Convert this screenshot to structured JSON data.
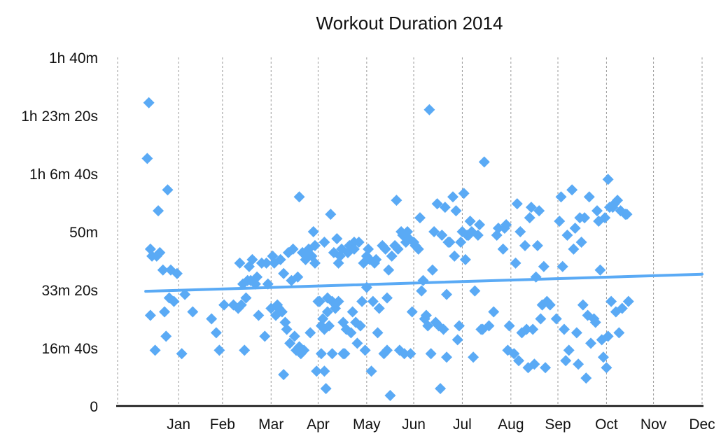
{
  "chart_data": {
    "type": "scatter",
    "title": "Workout Duration 2014",
    "xlabel": "",
    "ylabel": "",
    "x_unit": "day-of-year",
    "y_unit": "minutes",
    "xlim": [
      1,
      365
    ],
    "ylim": [
      0,
      100
    ],
    "grid": {
      "x": true,
      "y": false
    },
    "legend": "none",
    "y_ticks": [
      {
        "value": 0,
        "label": "0"
      },
      {
        "value": 16.667,
        "label": "16m 40s"
      },
      {
        "value": 33.333,
        "label": "33m 20s"
      },
      {
        "value": 50,
        "label": "50m"
      },
      {
        "value": 66.667,
        "label": "1h 6m 40s"
      },
      {
        "value": 83.333,
        "label": "1h 23m 20s"
      },
      {
        "value": 100,
        "label": "1h 40m"
      }
    ],
    "x_ticks": [
      {
        "value": 31,
        "label": "Jan"
      },
      {
        "value": 59,
        "label": "Feb"
      },
      {
        "value": 90,
        "label": "Mar"
      },
      {
        "value": 120,
        "label": "Apr"
      },
      {
        "value": 151,
        "label": "May"
      },
      {
        "value": 181,
        "label": "Jun"
      },
      {
        "value": 212,
        "label": "Jul"
      },
      {
        "value": 243,
        "label": "Aug"
      },
      {
        "value": 273,
        "label": "Sep"
      },
      {
        "value": 304,
        "label": "Oct"
      },
      {
        "value": 334,
        "label": "Nov"
      },
      {
        "value": 365,
        "label": "Dec"
      }
    ],
    "colors": {
      "marker": "#5aaaf5",
      "trend": "#5aaaf5",
      "grid": "#9a9a9a",
      "axis": "#111111"
    },
    "trendline": {
      "x": [
        10,
        365
      ],
      "y": [
        32.9,
        37.8
      ]
    },
    "points": [
      [
        12,
        87
      ],
      [
        11,
        71
      ],
      [
        13,
        26
      ],
      [
        13,
        45
      ],
      [
        14,
        43
      ],
      [
        16,
        16
      ],
      [
        17,
        43
      ],
      [
        18,
        56
      ],
      [
        19,
        44
      ],
      [
        21,
        39
      ],
      [
        22,
        27
      ],
      [
        23,
        20
      ],
      [
        24,
        62
      ],
      [
        25,
        31
      ],
      [
        26,
        39
      ],
      [
        28,
        30
      ],
      [
        30,
        38
      ],
      [
        33,
        15
      ],
      [
        35,
        32
      ],
      [
        40,
        27
      ],
      [
        52,
        25
      ],
      [
        55,
        21
      ],
      [
        57,
        16
      ],
      [
        60,
        29
      ],
      [
        66,
        29
      ],
      [
        69,
        28
      ],
      [
        70,
        41
      ],
      [
        71,
        29
      ],
      [
        72,
        35
      ],
      [
        73,
        16
      ],
      [
        74,
        31
      ],
      [
        75,
        36
      ],
      [
        76,
        40
      ],
      [
        77,
        36
      ],
      [
        78,
        42
      ],
      [
        80,
        35
      ],
      [
        81,
        37
      ],
      [
        82,
        26
      ],
      [
        84,
        41
      ],
      [
        86,
        20
      ],
      [
        87,
        41
      ],
      [
        88,
        35
      ],
      [
        90,
        28
      ],
      [
        91,
        43
      ],
      [
        92,
        41
      ],
      [
        93,
        26
      ],
      [
        94,
        29
      ],
      [
        95,
        28
      ],
      [
        96,
        42
      ],
      [
        97,
        27
      ],
      [
        98,
        38
      ],
      [
        98,
        9
      ],
      [
        99,
        24
      ],
      [
        100,
        22
      ],
      [
        101,
        44
      ],
      [
        102,
        18
      ],
      [
        103,
        36
      ],
      [
        104,
        45
      ],
      [
        105,
        20
      ],
      [
        106,
        16
      ],
      [
        107,
        37
      ],
      [
        108,
        17
      ],
      [
        108,
        60
      ],
      [
        109,
        15
      ],
      [
        110,
        44
      ],
      [
        111,
        16
      ],
      [
        112,
        42
      ],
      [
        113,
        43
      ],
      [
        114,
        45
      ],
      [
        115,
        21
      ],
      [
        116,
        43
      ],
      [
        117,
        50
      ],
      [
        118,
        46
      ],
      [
        118,
        41
      ],
      [
        119,
        10
      ],
      [
        120,
        30
      ],
      [
        121,
        30
      ],
      [
        122,
        23
      ],
      [
        122,
        15
      ],
      [
        123,
        25
      ],
      [
        124,
        47
      ],
      [
        124,
        22
      ],
      [
        124,
        10
      ],
      [
        125,
        5
      ],
      [
        126,
        31
      ],
      [
        126,
        27
      ],
      [
        127,
        23
      ],
      [
        128,
        55
      ],
      [
        129,
        15
      ],
      [
        129,
        30
      ],
      [
        130,
        44
      ],
      [
        131,
        28
      ],
      [
        132,
        48
      ],
      [
        133,
        41
      ],
      [
        133,
        30
      ],
      [
        134,
        43
      ],
      [
        135,
        45
      ],
      [
        136,
        15
      ],
      [
        136,
        24
      ],
      [
        137,
        15
      ],
      [
        138,
        22
      ],
      [
        139,
        44
      ],
      [
        140,
        46
      ],
      [
        141,
        21
      ],
      [
        142,
        27
      ],
      [
        143,
        47
      ],
      [
        143,
        45
      ],
      [
        144,
        24
      ],
      [
        145,
        18
      ],
      [
        146,
        47
      ],
      [
        147,
        23
      ],
      [
        148,
        30
      ],
      [
        149,
        41
      ],
      [
        150,
        16
      ],
      [
        151,
        34
      ],
      [
        151,
        43
      ],
      [
        152,
        45
      ],
      [
        153,
        42
      ],
      [
        154,
        10
      ],
      [
        155,
        30
      ],
      [
        156,
        41
      ],
      [
        157,
        42
      ],
      [
        158,
        21
      ],
      [
        159,
        28
      ],
      [
        161,
        46
      ],
      [
        162,
        15
      ],
      [
        163,
        45
      ],
      [
        164,
        31
      ],
      [
        164,
        16
      ],
      [
        165,
        39
      ],
      [
        166,
        3
      ],
      [
        167,
        43
      ],
      [
        169,
        46
      ],
      [
        170,
        59
      ],
      [
        171,
        45
      ],
      [
        172,
        16
      ],
      [
        173,
        50
      ],
      [
        174,
        49
      ],
      [
        175,
        15
      ],
      [
        176,
        47
      ],
      [
        177,
        50
      ],
      [
        178,
        48
      ],
      [
        179,
        15
      ],
      [
        180,
        27
      ],
      [
        181,
        47
      ],
      [
        182,
        46
      ],
      [
        184,
        45
      ],
      [
        185,
        54
      ],
      [
        186,
        33
      ],
      [
        187,
        36
      ],
      [
        188,
        25
      ],
      [
        189,
        26
      ],
      [
        190,
        23
      ],
      [
        191,
        85
      ],
      [
        192,
        15
      ],
      [
        193,
        39
      ],
      [
        194,
        50
      ],
      [
        195,
        24
      ],
      [
        196,
        58
      ],
      [
        197,
        23
      ],
      [
        198,
        5
      ],
      [
        199,
        49
      ],
      [
        200,
        22
      ],
      [
        201,
        57
      ],
      [
        202,
        32
      ],
      [
        202,
        14
      ],
      [
        203,
        47
      ],
      [
        204,
        47
      ],
      [
        206,
        60
      ],
      [
        207,
        43
      ],
      [
        208,
        56
      ],
      [
        209,
        19
      ],
      [
        210,
        23
      ],
      [
        211,
        47
      ],
      [
        212,
        50
      ],
      [
        213,
        61
      ],
      [
        214,
        42
      ],
      [
        215,
        49
      ],
      [
        216,
        49
      ],
      [
        217,
        53
      ],
      [
        218,
        50
      ],
      [
        219,
        14
      ],
      [
        220,
        33
      ],
      [
        222,
        49
      ],
      [
        223,
        52
      ],
      [
        224,
        22
      ],
      [
        225,
        22
      ],
      [
        226,
        70
      ],
      [
        229,
        23
      ],
      [
        232,
        27
      ],
      [
        234,
        49
      ],
      [
        235,
        51
      ],
      [
        238,
        45
      ],
      [
        239,
        51
      ],
      [
        240,
        52
      ],
      [
        241,
        16
      ],
      [
        242,
        23
      ],
      [
        245,
        15
      ],
      [
        246,
        41
      ],
      [
        247,
        58
      ],
      [
        248,
        13
      ],
      [
        249,
        50
      ],
      [
        250,
        21
      ],
      [
        252,
        46
      ],
      [
        253,
        22
      ],
      [
        254,
        11
      ],
      [
        255,
        54
      ],
      [
        256,
        57
      ],
      [
        257,
        22
      ],
      [
        258,
        12
      ],
      [
        259,
        37
      ],
      [
        260,
        46
      ],
      [
        261,
        56
      ],
      [
        262,
        25
      ],
      [
        263,
        29
      ],
      [
        264,
        40
      ],
      [
        265,
        11
      ],
      [
        266,
        30
      ],
      [
        268,
        29
      ],
      [
        272,
        25
      ],
      [
        274,
        53
      ],
      [
        275,
        60
      ],
      [
        276,
        40
      ],
      [
        277,
        22
      ],
      [
        278,
        13
      ],
      [
        279,
        49
      ],
      [
        280,
        16
      ],
      [
        282,
        62
      ],
      [
        283,
        45
      ],
      [
        284,
        51
      ],
      [
        285,
        21
      ],
      [
        286,
        12
      ],
      [
        287,
        54
      ],
      [
        288,
        47
      ],
      [
        289,
        29
      ],
      [
        290,
        54
      ],
      [
        291,
        8
      ],
      [
        292,
        26
      ],
      [
        293,
        60
      ],
      [
        294,
        18
      ],
      [
        296,
        25
      ],
      [
        297,
        24
      ],
      [
        298,
        56
      ],
      [
        299,
        53
      ],
      [
        300,
        39
      ],
      [
        301,
        19
      ],
      [
        302,
        14
      ],
      [
        303,
        54
      ],
      [
        304,
        11
      ],
      [
        305,
        65
      ],
      [
        305,
        20
      ],
      [
        306,
        57
      ],
      [
        307,
        30
      ],
      [
        308,
        57
      ],
      [
        309,
        58
      ],
      [
        310,
        27
      ],
      [
        311,
        59
      ],
      [
        312,
        21
      ],
      [
        313,
        56
      ],
      [
        314,
        28
      ],
      [
        316,
        55
      ],
      [
        317,
        55
      ],
      [
        318,
        30
      ]
    ]
  }
}
